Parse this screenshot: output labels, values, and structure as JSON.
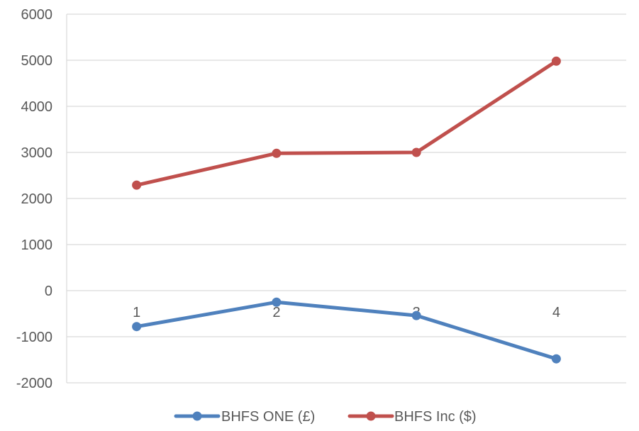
{
  "chart_data": {
    "type": "line",
    "categories": [
      "1",
      "2",
      "3",
      "4"
    ],
    "series": [
      {
        "name": "BHFS ONE (£)",
        "values": [
          -780,
          -250,
          -540,
          -1480
        ],
        "color": "#4F81BD"
      },
      {
        "name": "BHFS Inc ($)",
        "values": [
          2290,
          2980,
          3000,
          4980
        ],
        "color": "#C0504D"
      }
    ],
    "ylim": [
      -2000,
      6000
    ],
    "yticks": [
      "6000",
      "5000",
      "4000",
      "3000",
      "2000",
      "1000",
      "0",
      "-1000",
      "-2000"
    ],
    "ytick_values": [
      6000,
      5000,
      4000,
      3000,
      2000,
      1000,
      0,
      -1000,
      -2000
    ],
    "grid": true,
    "legend_position": "bottom",
    "title": "",
    "xlabel": "",
    "ylabel": ""
  }
}
